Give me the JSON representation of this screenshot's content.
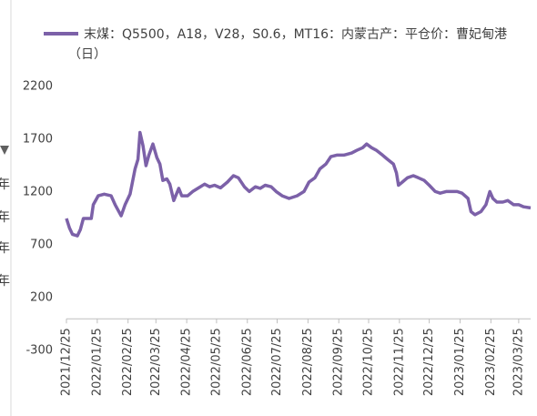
{
  "chart_data": {
    "type": "line",
    "series": [
      {
        "name": "末煤：Q5500，A18，V28，S0.6，MT16：内蒙古产：平仓价：曹妃甸港（日）",
        "color": "#7c61a8",
        "values": [
          950,
          860,
          800,
          785,
          845,
          950,
          950,
          1080,
          1165,
          1180,
          1165,
          1080,
          975,
          1080,
          1180,
          1420,
          1510,
          1765,
          1640,
          1450,
          1550,
          1655,
          1525,
          1465,
          1310,
          1325,
          1275,
          1120,
          1235,
          1165,
          1165,
          1205,
          1240,
          1275,
          1250,
          1265,
          1240,
          1295,
          1355,
          1335,
          1250,
          1205,
          1250,
          1235,
          1265,
          1250,
          1205,
          1165,
          1140,
          1165,
          1205,
          1295,
          1335,
          1420,
          1465,
          1535,
          1550,
          1550,
          1570,
          1595,
          1620,
          1655,
          1620,
          1595,
          1550,
          1510,
          1465,
          1380,
          1265,
          1295,
          1335,
          1355,
          1335,
          1310,
          1265,
          1205,
          1190,
          1205,
          1205,
          1205,
          1190,
          1140,
          1015,
          985,
          1015,
          1080,
          1205,
          1140,
          1105,
          1105,
          1120,
          1080,
          1080,
          1060,
          1050
        ]
      }
    ],
    "x": [
      "2021/12/25",
      "2021/12/28",
      "2021/12/31",
      "2022/01/05",
      "2022/01/08",
      "2022/01/11",
      "2022/01/19",
      "2022/01/21",
      "2022/01/26",
      "2022/02/01",
      "2022/02/08",
      "2022/02/12",
      "2022/02/18",
      "2022/02/22",
      "2022/02/27",
      "2022/03/04",
      "2022/03/07",
      "2022/03/09",
      "2022/03/12",
      "2022/03/15",
      "2022/03/18",
      "2022/03/22",
      "2022/03/26",
      "2022/03/29",
      "2022/04/01",
      "2022/04/05",
      "2022/04/08",
      "2022/04/12",
      "2022/04/17",
      "2022/04/20",
      "2022/04/26",
      "2022/05/01",
      "2022/05/07",
      "2022/05/13",
      "2022/05/18",
      "2022/05/23",
      "2022/05/29",
      "2022/06/05",
      "2022/06/11",
      "2022/06/16",
      "2022/06/22",
      "2022/06/27",
      "2022/07/03",
      "2022/07/08",
      "2022/07/13",
      "2022/07/19",
      "2022/07/24",
      "2022/07/30",
      "2022/08/06",
      "2022/08/14",
      "2022/08/21",
      "2022/08/26",
      "2022/09/01",
      "2022/09/06",
      "2022/09/12",
      "2022/09/17",
      "2022/09/23",
      "2022/09/30",
      "2022/10/08",
      "2022/10/13",
      "2022/10/19",
      "2022/10/23",
      "2022/10/28",
      "2022/11/02",
      "2022/11/08",
      "2022/11/13",
      "2022/11/19",
      "2022/11/22",
      "2022/11/24",
      "2022/11/28",
      "2022/12/03",
      "2022/12/09",
      "2022/12/14",
      "2022/12/20",
      "2022/12/25",
      "2022/12/31",
      "2023/01/05",
      "2023/01/11",
      "2023/01/16",
      "2023/01/22",
      "2023/01/27",
      "2023/02/02",
      "2023/02/05",
      "2023/02/09",
      "2023/02/15",
      "2023/02/20",
      "2023/02/24",
      "2023/02/27",
      "2023/03/03",
      "2023/03/09",
      "2023/03/14",
      "2023/03/20",
      "2023/03/25",
      "2023/03/30",
      "2023/04/06"
    ],
    "xlim": [
      "2021/12/25",
      "2023/04/06"
    ],
    "xticks": [
      "2021/12/25",
      "2022/01/25",
      "2022/02/25",
      "2022/03/25",
      "2022/04/25",
      "2022/05/25",
      "2022/06/25",
      "2022/07/25",
      "2022/08/25",
      "2022/09/25",
      "2022/10/25",
      "2022/11/25",
      "2022/12/25",
      "2023/01/25",
      "2023/02/25",
      "2023/03/25"
    ],
    "ylim": [
      -300,
      2200
    ],
    "yticks": [
      -300,
      200,
      700,
      1200,
      1700,
      2200
    ],
    "grid": false
  },
  "left_panel": {
    "labels": [
      "年",
      "年",
      "年",
      "年"
    ]
  }
}
